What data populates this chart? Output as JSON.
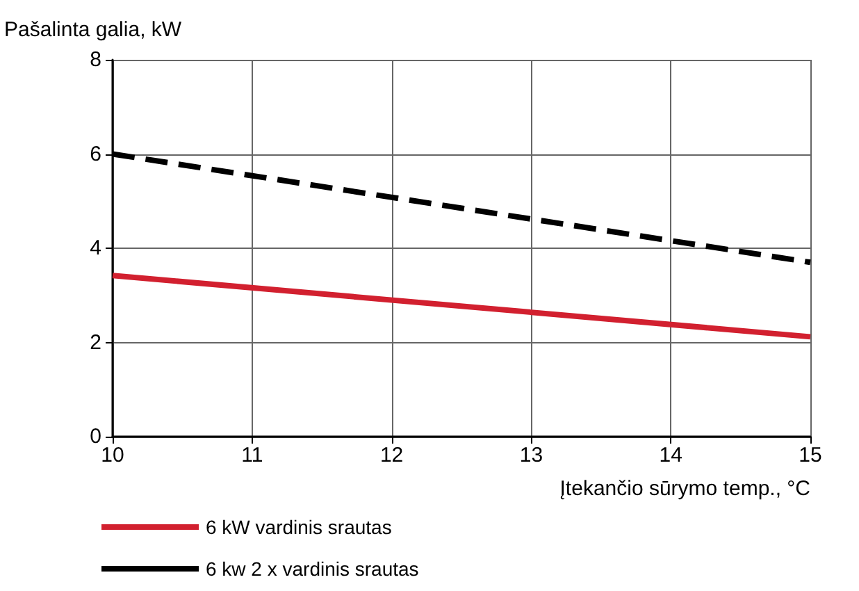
{
  "chart_data": {
    "type": "line",
    "xlabel": "Įtekančio sūrymo temp., °C",
    "ylabel": "Pašalinta galia, kW",
    "x": [
      10,
      15
    ],
    "series": [
      {
        "name": "6 kW vardinis srautas",
        "color": "#d2202f",
        "values": [
          3.42,
          2.12
        ],
        "line_style": "solid"
      },
      {
        "name": "6 kw 2 x vardinis srautas",
        "color": "#000000",
        "values": [
          6.0,
          3.7
        ],
        "line_style": "dashed"
      }
    ],
    "xlim": [
      10,
      15
    ],
    "xticks": [
      10,
      11,
      12,
      13,
      14,
      15
    ],
    "ylim": [
      0,
      8
    ],
    "yticks": [
      0,
      2,
      4,
      6,
      8
    ],
    "grid": true,
    "legend": "bottom left",
    "marker": "none"
  }
}
